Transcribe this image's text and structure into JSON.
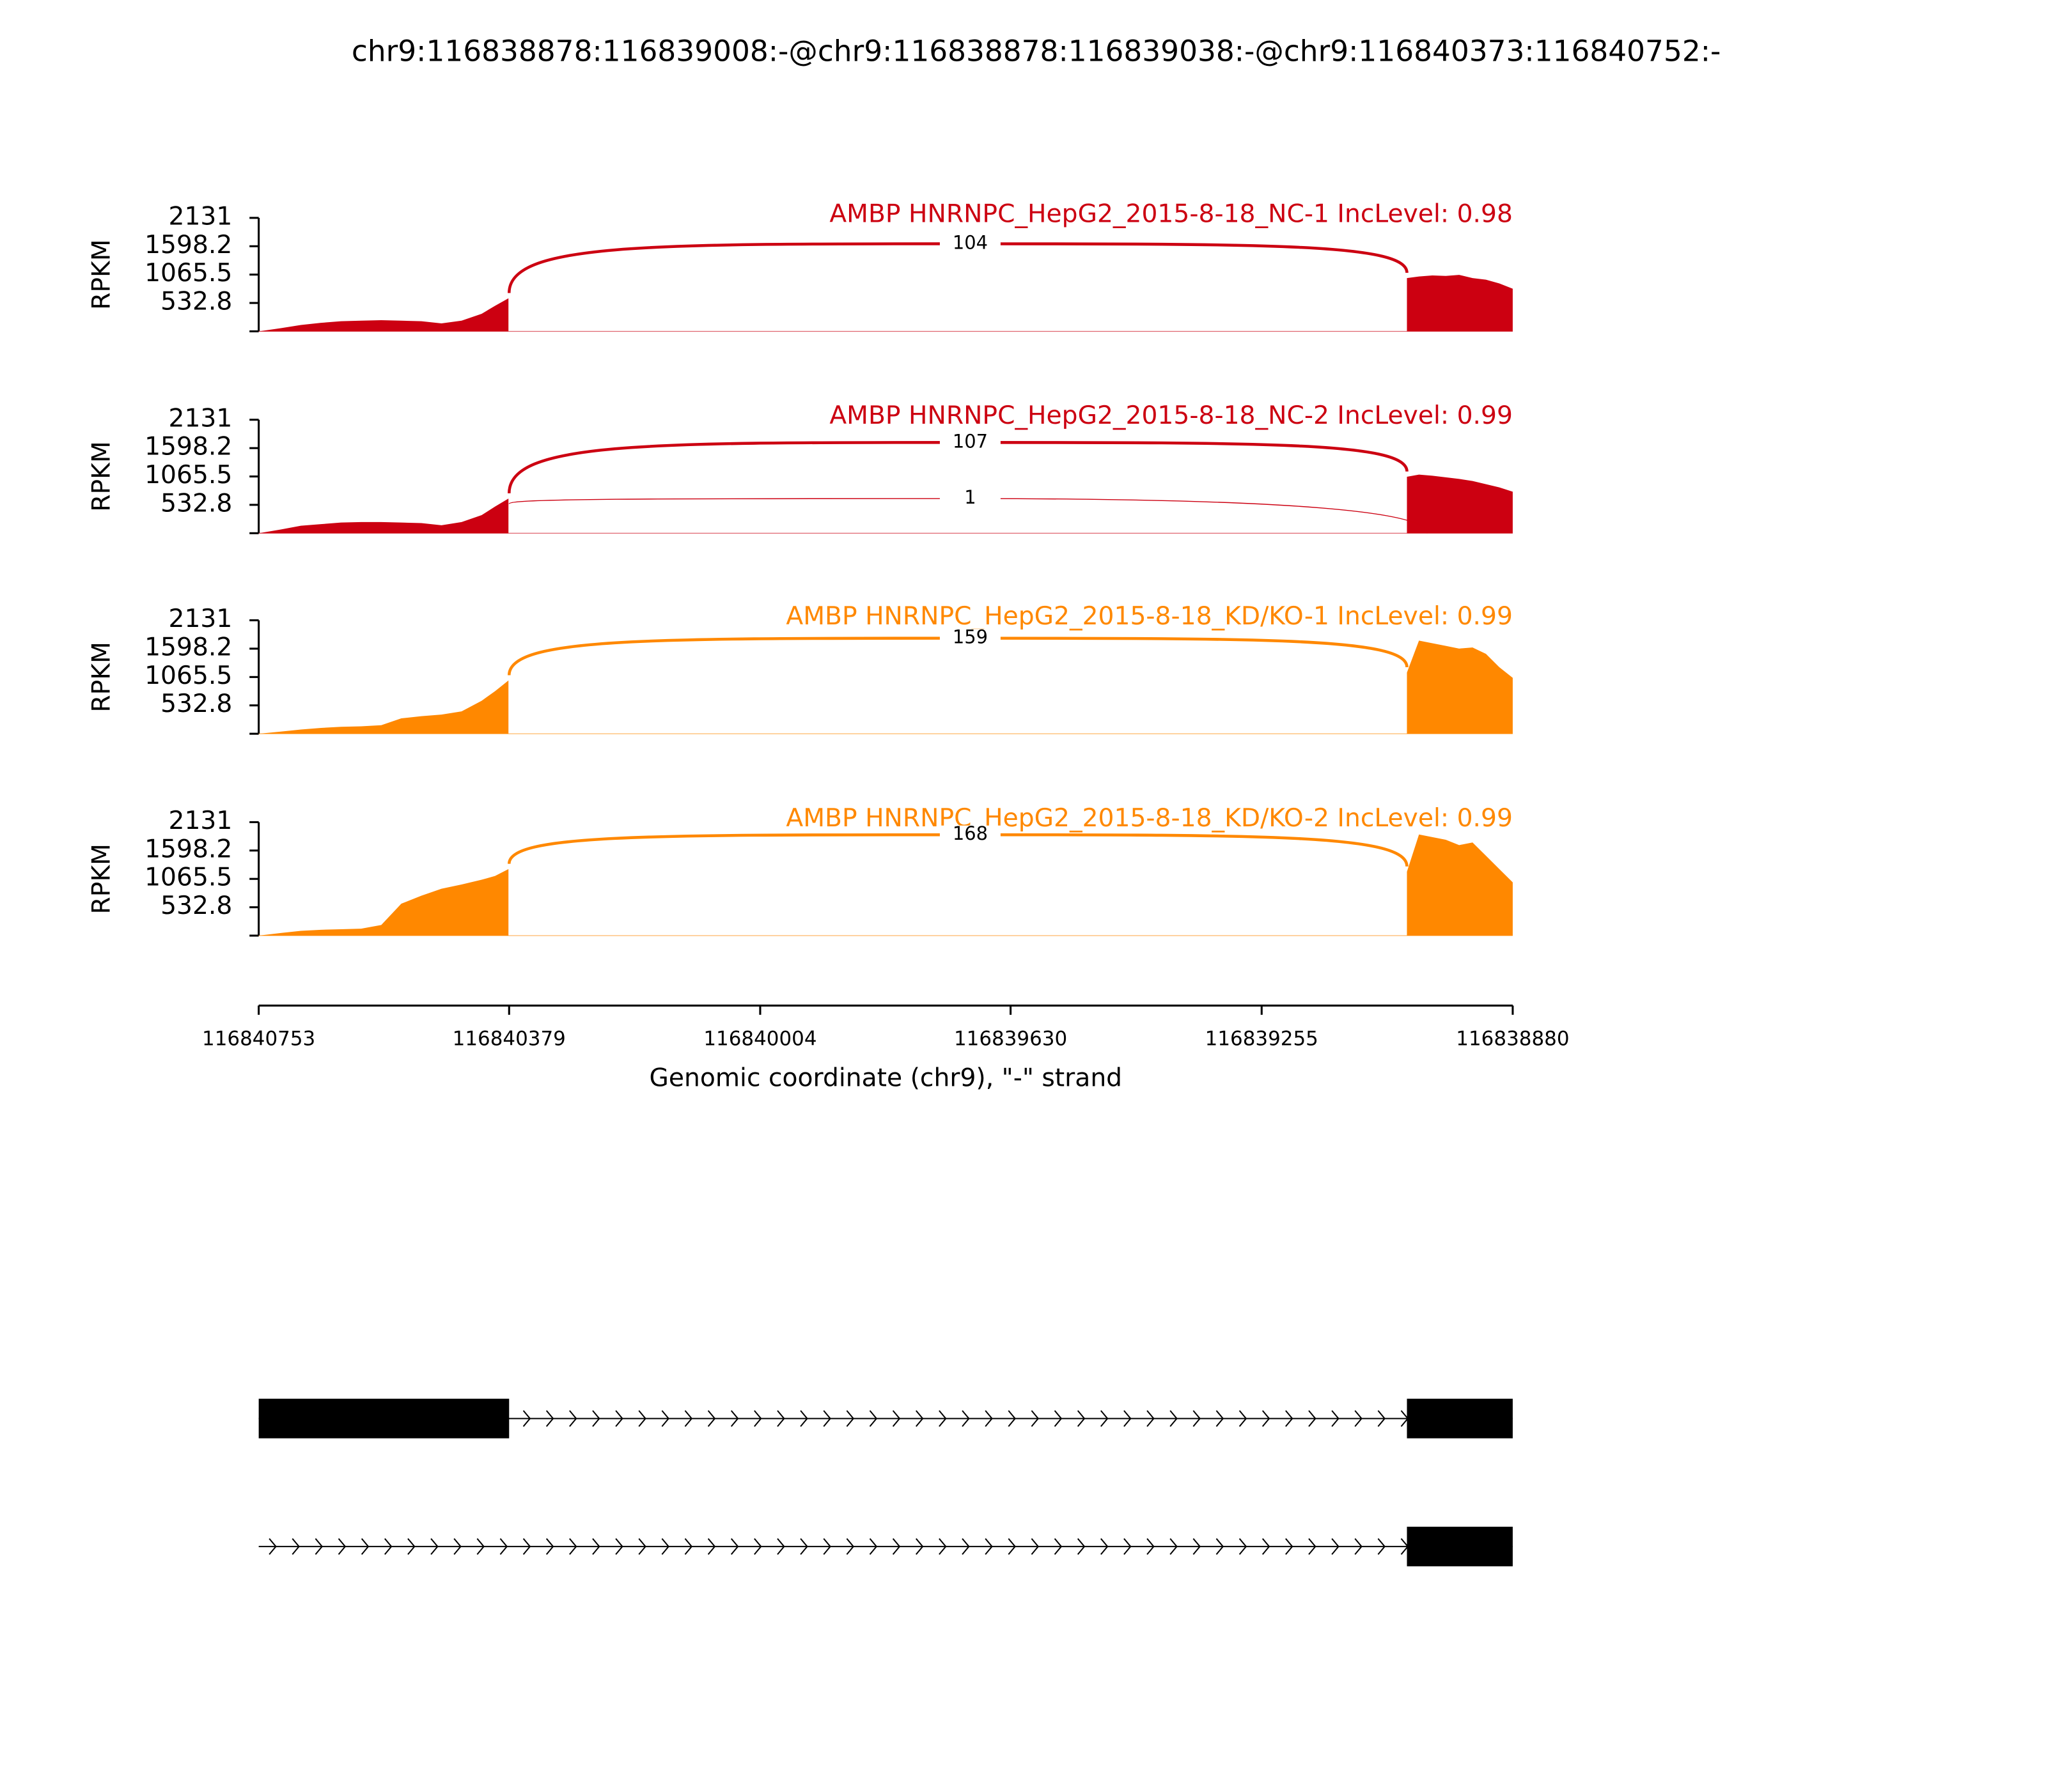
{
  "title": "chr9:116838878:116839008:-@chr9:116838878:116839038:-@chr9:116840373:116840752:-",
  "x_axis": {
    "xlim": [
      116840753,
      116838880
    ],
    "xticks": [
      116840753,
      116840379,
      116840004,
      116839630,
      116839255,
      116838880
    ],
    "label": "Genomic coordinate (chr9), \"-\" strand"
  },
  "chart_data": [
    {
      "type": "sashimi",
      "title": "AMBP HNRNPC_HepG2_2015-8-18_NC-1 IncLevel: 0.98",
      "color": "#cc0011",
      "ylabel": "RPKM",
      "ylim": [
        0,
        2131
      ],
      "yticks": [
        532.8,
        1065.5,
        1598.2,
        2131
      ],
      "x": [
        116840753,
        116840720,
        116840690,
        116840660,
        116840630,
        116840600,
        116840570,
        116840540,
        116840510,
        116840480,
        116840450,
        116840420,
        116840400,
        116840380,
        116839500,
        116839038,
        116839020,
        116839000,
        116838980,
        116838960,
        116838940,
        116838920,
        116838900,
        116838880
      ],
      "values": [
        0,
        60,
        120,
        160,
        190,
        200,
        210,
        200,
        190,
        150,
        200,
        330,
        480,
        620,
        null,
        1000,
        1030,
        1050,
        1040,
        1060,
        1000,
        970,
        900,
        800
      ],
      "junctions": [
        {
          "start": 116840379,
          "end": 116839038,
          "count": 104
        }
      ]
    },
    {
      "type": "sashimi",
      "title": "AMBP HNRNPC_HepG2_2015-8-18_NC-2 IncLevel: 0.99",
      "color": "#cc0011",
      "ylabel": "RPKM",
      "ylim": [
        0,
        2131
      ],
      "yticks": [
        532.8,
        1065.5,
        1598.2,
        2131
      ],
      "x": [
        116840753,
        116840720,
        116840690,
        116840660,
        116840630,
        116840600,
        116840570,
        116840540,
        116840510,
        116840480,
        116840450,
        116840420,
        116840400,
        116840380,
        116839500,
        116839038,
        116839020,
        116839000,
        116838980,
        116838960,
        116838940,
        116838920,
        116838900,
        116838880
      ],
      "values": [
        0,
        70,
        140,
        170,
        200,
        210,
        210,
        200,
        190,
        150,
        210,
        340,
        500,
        650,
        null,
        1060,
        1100,
        1080,
        1050,
        1020,
        980,
        920,
        860,
        780
      ],
      "junctions": [
        {
          "start": 116840379,
          "end": 116839038,
          "count": 107
        },
        {
          "start": 116840379,
          "end": 116839008,
          "count": 1
        }
      ]
    },
    {
      "type": "sashimi",
      "title": "AMBP HNRNPC_HepG2_2015-8-18_KD/KO-1 IncLevel: 0.99",
      "color": "#ff8800",
      "ylabel": "RPKM",
      "ylim": [
        0,
        2131
      ],
      "yticks": [
        532.8,
        1065.5,
        1598.2,
        2131
      ],
      "x": [
        116840753,
        116840720,
        116840690,
        116840660,
        116840630,
        116840600,
        116840570,
        116840540,
        116840510,
        116840480,
        116840450,
        116840420,
        116840400,
        116840380,
        116839500,
        116839038,
        116839020,
        116839000,
        116838980,
        116838960,
        116838940,
        116838920,
        116838900,
        116838880
      ],
      "values": [
        0,
        40,
        80,
        110,
        130,
        140,
        160,
        290,
        330,
        360,
        420,
        620,
        800,
        1000,
        null,
        1150,
        1750,
        1700,
        1650,
        1600,
        1620,
        1500,
        1250,
        1050
      ],
      "junctions": [
        {
          "start": 116840379,
          "end": 116839038,
          "count": 159
        }
      ]
    },
    {
      "type": "sashimi",
      "title": "AMBP HNRNPC_HepG2_2015-8-18_KD/KO-2 IncLevel: 0.99",
      "color": "#ff8800",
      "ylabel": "RPKM",
      "ylim": [
        0,
        2131
      ],
      "yticks": [
        532.8,
        1065.5,
        1598.2,
        2131
      ],
      "x": [
        116840753,
        116840720,
        116840690,
        116840660,
        116840630,
        116840600,
        116840570,
        116840540,
        116840510,
        116840480,
        116840450,
        116840420,
        116840400,
        116840380,
        116839500,
        116839038,
        116839020,
        116839000,
        116838980,
        116838960,
        116838940,
        116838920,
        116838900,
        116838880
      ],
      "values": [
        0,
        50,
        90,
        110,
        120,
        130,
        200,
        600,
        750,
        880,
        960,
        1050,
        1120,
        1250,
        null,
        1200,
        1900,
        1850,
        1800,
        1700,
        1750,
        1500,
        1250,
        1000
      ],
      "junctions": [
        {
          "start": 116840379,
          "end": 116839038,
          "count": 168
        }
      ]
    }
  ],
  "transcripts": [
    {
      "exons": [
        [
          116840753,
          116840379
        ],
        [
          116839038,
          116838880
        ]
      ]
    },
    {
      "exons": [
        [
          116839038,
          116838880
        ]
      ]
    }
  ]
}
